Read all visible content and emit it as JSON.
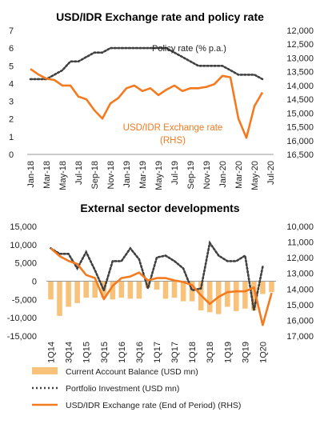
{
  "colors": {
    "orange": "#F47A20",
    "bar": "#F9C27A",
    "dots": "#404040"
  },
  "chart_data": [
    {
      "type": "line",
      "title": "USD/IDR Exchange rate and policy rate",
      "x": [
        "Jan-18",
        "Feb-18",
        "Mar-18",
        "Apr-18",
        "May-18",
        "Jun-18",
        "Jul-18",
        "Aug-18",
        "Sep-18",
        "Oct-18",
        "Nov-18",
        "Dec-18",
        "Jan-19",
        "Feb-19",
        "Mar-19",
        "Apr-19",
        "May-19",
        "Jun-19",
        "Jul-19",
        "Aug-19",
        "Sep-19",
        "Oct-19",
        "Nov-19",
        "Dec-19",
        "Jan-20",
        "Feb-20",
        "Mar-20",
        "Apr-20",
        "May-20",
        "Jun-20",
        "Jul-20"
      ],
      "x_tick_labels": [
        "Jan-18",
        "Mar-18",
        "May-18",
        "Jul-18",
        "Sep-18",
        "Nov-18",
        "Jan-19",
        "Mar-19",
        "May-19",
        "Jul-19",
        "Sep-19",
        "Nov-19",
        "Jan-20",
        "Mar-20",
        "May-20",
        "Jul-20"
      ],
      "y_left_ticks": [
        "0",
        "1",
        "2",
        "3",
        "4",
        "5",
        "6",
        "7"
      ],
      "y_left_range": [
        0,
        7
      ],
      "y_right_ticks": [
        "12,000",
        "12,500",
        "13,000",
        "13,500",
        "14,000",
        "14,500",
        "15,000",
        "15,500",
        "16,000",
        "16,500"
      ],
      "y_right_range": [
        12000,
        16500
      ],
      "y_right_inverted": true,
      "series": [
        {
          "name": "Policy rate (% p.a.)",
          "axis": "left",
          "style": "dotted",
          "values": [
            4.25,
            4.25,
            4.25,
            4.5,
            4.75,
            5.25,
            5.25,
            5.5,
            5.75,
            5.75,
            6.0,
            6.0,
            6.0,
            6.0,
            6.0,
            6.0,
            6.0,
            6.0,
            5.75,
            5.5,
            5.25,
            5.0,
            5.0,
            5.0,
            5.0,
            4.75,
            4.5,
            4.5,
            4.5,
            4.25,
            null
          ]
        },
        {
          "name": "USD/IDR Exchange rate (RHS)",
          "axis": "right",
          "style": "solid",
          "values": [
            13400,
            13600,
            13750,
            13800,
            14000,
            14000,
            14400,
            14500,
            14900,
            15200,
            14650,
            14450,
            14100,
            14000,
            14200,
            14100,
            14350,
            14150,
            14000,
            14200,
            14100,
            14100,
            14050,
            13950,
            13650,
            13700,
            15200,
            15900,
            14750,
            14250,
            null
          ]
        }
      ]
    },
    {
      "type": "bar",
      "title": "External sector developments",
      "x": [
        "1Q14",
        "2Q14",
        "3Q14",
        "4Q14",
        "1Q15",
        "2Q15",
        "3Q15",
        "4Q15",
        "1Q16",
        "2Q16",
        "3Q16",
        "4Q16",
        "1Q17",
        "2Q17",
        "3Q17",
        "4Q17",
        "1Q18",
        "2Q18",
        "3Q18",
        "4Q18",
        "1Q19",
        "2Q19",
        "3Q19",
        "4Q19",
        "1Q20",
        "2Q20"
      ],
      "x_tick_labels": [
        "1Q14",
        "3Q14",
        "1Q15",
        "3Q15",
        "1Q16",
        "3Q16",
        "1Q17",
        "3Q17",
        "1Q18",
        "3Q18",
        "1Q19",
        "3Q19",
        "1Q20"
      ],
      "y_left_ticks": [
        "15,000",
        "10,000",
        "5,000",
        "0",
        "-5,000",
        "-10,000",
        "-15,000"
      ],
      "y_left_range": [
        -15000,
        15000
      ],
      "y_right_ticks": [
        "10,000",
        "11,000",
        "12,000",
        "13,000",
        "14,000",
        "15,000",
        "16,000",
        "17,000"
      ],
      "y_right_range": [
        10000,
        17000
      ],
      "y_right_inverted": true,
      "series": [
        {
          "name": "Current Account Balance (USD mn)",
          "axis": "left",
          "style": "bar",
          "values": [
            -5000,
            -9500,
            -7000,
            -6000,
            -4500,
            -4500,
            -4500,
            -5000,
            -4500,
            -4800,
            -4800,
            -1800,
            -2300,
            -4800,
            -4500,
            -5500,
            -5500,
            -8000,
            -8500,
            -9000,
            -7000,
            -8200,
            -7500,
            -8000,
            -3500,
            -3000
          ]
        },
        {
          "name": "Portfolio Investment (USD mn)",
          "axis": "left",
          "style": "dotted",
          "values": [
            9000,
            7500,
            7500,
            3500,
            8000,
            3000,
            -2500,
            5500,
            5500,
            9000,
            6000,
            -2000,
            6500,
            7000,
            5500,
            3500,
            -2500,
            -2000,
            10500,
            7000,
            5500,
            5500,
            7000,
            -8000,
            4000,
            null
          ]
        },
        {
          "name": "USD/IDR Exchange rate (End of Period) (RHS)",
          "axis": "right",
          "style": "solid",
          "values": [
            11400,
            11900,
            12200,
            12400,
            13100,
            13300,
            14650,
            13800,
            13300,
            13200,
            12950,
            13450,
            13300,
            13300,
            13450,
            13550,
            13750,
            14400,
            14950,
            14500,
            14200,
            14150,
            14150,
            13900,
            16300,
            14250
          ]
        }
      ],
      "legend": [
        "Current Account Balance (USD mn)",
        "Portfolio Investment (USD mn)",
        "USD/IDR Exchange rate (End of Period) (RHS)"
      ]
    }
  ]
}
